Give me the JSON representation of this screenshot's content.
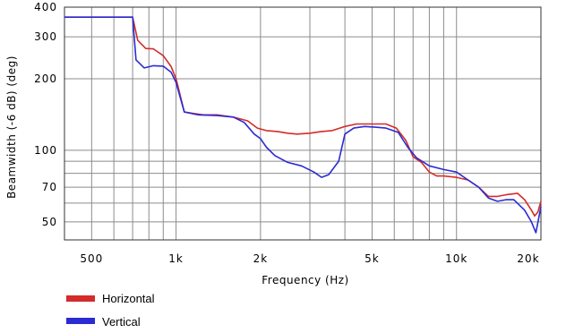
{
  "chart_data": {
    "type": "line",
    "title": "",
    "xlabel": "Frequency (Hz)",
    "ylabel": "Beamwidth (-6 dB) (deg)",
    "x_scale": "log",
    "y_scale": "log",
    "xlim": [
      400,
      20000
    ],
    "ylim": [
      42,
      400
    ],
    "grid": true,
    "legend_position": "bottom-left",
    "x_tick_labels": [
      {
        "value": 500,
        "label": "500"
      },
      {
        "value": 1000,
        "label": "1k"
      },
      {
        "value": 2000,
        "label": "2k"
      },
      {
        "value": 5000,
        "label": "5k"
      },
      {
        "value": 10000,
        "label": "10k"
      },
      {
        "value": 20000,
        "label": "20k"
      }
    ],
    "y_tick_labels": [
      {
        "value": 400,
        "label": "400"
      },
      {
        "value": 300,
        "label": "300"
      },
      {
        "value": 200,
        "label": "200"
      },
      {
        "value": 100,
        "label": "100"
      },
      {
        "value": 70,
        "label": "70"
      },
      {
        "value": 50,
        "label": "50"
      }
    ],
    "x_gridlines": [
      500,
      600,
      700,
      800,
      900,
      1000,
      2000,
      3000,
      4000,
      5000,
      6000,
      7000,
      8000,
      9000,
      10000,
      20000
    ],
    "y_gridlines": [
      50,
      60,
      70,
      80,
      90,
      100,
      200,
      300,
      400
    ],
    "series": [
      {
        "name": "Horizontal",
        "color": "#d42b2b",
        "points": [
          [
            400,
            363
          ],
          [
            700,
            363
          ],
          [
            730,
            290
          ],
          [
            780,
            268
          ],
          [
            830,
            267
          ],
          [
            900,
            250
          ],
          [
            960,
            225
          ],
          [
            1000,
            200
          ],
          [
            1070,
            145
          ],
          [
            1150,
            143
          ],
          [
            1250,
            141
          ],
          [
            1400,
            141
          ],
          [
            1600,
            138
          ],
          [
            1800,
            133
          ],
          [
            1950,
            124
          ],
          [
            2100,
            121
          ],
          [
            2300,
            120
          ],
          [
            2500,
            118
          ],
          [
            2700,
            117
          ],
          [
            3000,
            118
          ],
          [
            3300,
            120
          ],
          [
            3600,
            121
          ],
          [
            4000,
            126
          ],
          [
            4400,
            129
          ],
          [
            5000,
            129
          ],
          [
            5600,
            129
          ],
          [
            6100,
            124
          ],
          [
            6600,
            110
          ],
          [
            7000,
            94
          ],
          [
            7500,
            89
          ],
          [
            8000,
            81
          ],
          [
            8500,
            78
          ],
          [
            9000,
            78
          ],
          [
            10000,
            77
          ],
          [
            11000,
            75
          ],
          [
            12000,
            70
          ],
          [
            13000,
            64
          ],
          [
            14000,
            64
          ],
          [
            15000,
            65
          ],
          [
            16500,
            66
          ],
          [
            17500,
            62
          ],
          [
            18500,
            56
          ],
          [
            19000,
            53
          ],
          [
            19500,
            55
          ],
          [
            20000,
            61
          ]
        ]
      },
      {
        "name": "Vertical",
        "color": "#2b2bd4",
        "points": [
          [
            400,
            363
          ],
          [
            700,
            363
          ],
          [
            720,
            240
          ],
          [
            770,
            222
          ],
          [
            830,
            227
          ],
          [
            900,
            226
          ],
          [
            960,
            213
          ],
          [
            1000,
            193
          ],
          [
            1070,
            145
          ],
          [
            1200,
            141
          ],
          [
            1400,
            140
          ],
          [
            1600,
            138
          ],
          [
            1750,
            131
          ],
          [
            1900,
            117
          ],
          [
            2000,
            112
          ],
          [
            2100,
            103
          ],
          [
            2250,
            95
          ],
          [
            2500,
            89
          ],
          [
            2800,
            86
          ],
          [
            3100,
            81
          ],
          [
            3300,
            77
          ],
          [
            3500,
            79
          ],
          [
            3800,
            90
          ],
          [
            4000,
            117
          ],
          [
            4300,
            124
          ],
          [
            4700,
            126
          ],
          [
            5200,
            125
          ],
          [
            5600,
            124
          ],
          [
            6200,
            119
          ],
          [
            6700,
            103
          ],
          [
            7200,
            93
          ],
          [
            8000,
            86
          ],
          [
            9000,
            83
          ],
          [
            10000,
            81
          ],
          [
            11000,
            75
          ],
          [
            12000,
            70
          ],
          [
            13000,
            63
          ],
          [
            14000,
            61
          ],
          [
            15000,
            62
          ],
          [
            16000,
            62
          ],
          [
            17500,
            56
          ],
          [
            18500,
            50
          ],
          [
            19200,
            45
          ],
          [
            20000,
            58
          ]
        ]
      }
    ]
  }
}
